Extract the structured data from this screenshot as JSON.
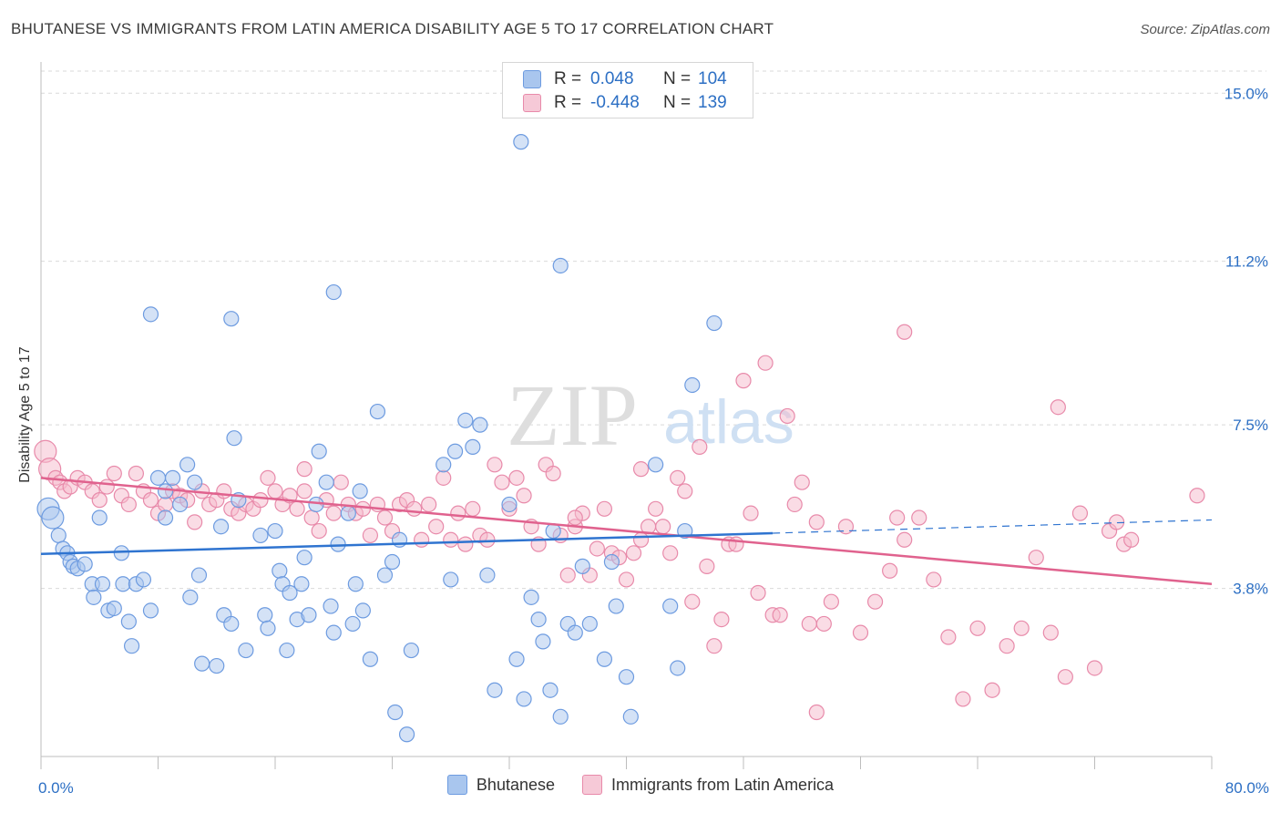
{
  "title": "BHUTANESE VS IMMIGRANTS FROM LATIN AMERICA DISABILITY AGE 5 TO 17 CORRELATION CHART",
  "source": "Source: ZipAtlas.com",
  "watermark": {
    "zip": "ZIP",
    "atlas": "atlas"
  },
  "legend_stats": [
    {
      "r_label": "R =",
      "r_value": "0.048",
      "n_label": "N =",
      "n_value": "104"
    },
    {
      "r_label": "R =",
      "r_value": "-0.448",
      "n_label": "N =",
      "n_value": "139"
    }
  ],
  "colors": {
    "blue_fill": "#a9c6ee",
    "blue_stroke": "#6d9be0",
    "blue_line": "#2f74d0",
    "pink_fill": "#f6b9cc",
    "pink_stroke": "#e88aaa",
    "pink_line": "#e0628e",
    "tick_label": "#2c6fc4",
    "grid": "#d9d9d9"
  },
  "chart_data": {
    "type": "scatter",
    "title": "BHUTANESE VS IMMIGRANTS FROM LATIN AMERICA DISABILITY AGE 5 TO 17 CORRELATION CHART",
    "xlabel": "",
    "ylabel": "Disability Age 5 to 17",
    "xlim": [
      0,
      80
    ],
    "ylim": [
      0,
      15.5
    ],
    "x_tick_labels": [
      {
        "value": 0,
        "label": "0.0%"
      },
      {
        "value": 80,
        "label": "80.0%"
      }
    ],
    "y_ticks": [
      {
        "value": 3.8,
        "label": "3.8%"
      },
      {
        "value": 7.5,
        "label": "7.5%"
      },
      {
        "value": 11.2,
        "label": "11.2%"
      },
      {
        "value": 15.0,
        "label": "15.0%"
      }
    ],
    "grid": true,
    "legend_position": "bottom",
    "series": [
      {
        "name": "Bhutanese",
        "r": 0.048,
        "n": 104,
        "trend": {
          "x0": 0,
          "y0": 4.58,
          "x1": 50,
          "y1": 5.05,
          "dashed_to_x": 80,
          "dashed_to_y": 5.35
        },
        "points": [
          [
            0.5,
            5.6
          ],
          [
            0.8,
            5.4
          ],
          [
            1.2,
            5.0
          ],
          [
            1.5,
            4.7
          ],
          [
            1.8,
            4.6
          ],
          [
            2.0,
            4.4
          ],
          [
            2.2,
            4.3
          ],
          [
            2.5,
            4.25
          ],
          [
            3.0,
            4.35
          ],
          [
            3.5,
            3.9
          ],
          [
            4.0,
            5.4
          ],
          [
            3.6,
            3.6
          ],
          [
            4.2,
            3.9
          ],
          [
            4.6,
            3.3
          ],
          [
            5.0,
            3.35
          ],
          [
            5.5,
            4.6
          ],
          [
            5.6,
            3.9
          ],
          [
            6.0,
            3.05
          ],
          [
            6.5,
            3.9
          ],
          [
            6.2,
            2.5
          ],
          [
            7.0,
            4.0
          ],
          [
            7.5,
            3.3
          ],
          [
            8.0,
            6.3
          ],
          [
            8.5,
            6.0
          ],
          [
            9.0,
            6.3
          ],
          [
            8.5,
            5.4
          ],
          [
            9.5,
            5.7
          ],
          [
            10.0,
            6.6
          ],
          [
            10.5,
            6.2
          ],
          [
            10.8,
            4.1
          ],
          [
            11.0,
            2.1
          ],
          [
            12.0,
            2.05
          ],
          [
            12.3,
            5.2
          ],
          [
            12.5,
            3.2
          ],
          [
            13.0,
            3.0
          ],
          [
            13.2,
            7.2
          ],
          [
            13.5,
            5.8
          ],
          [
            14.0,
            2.4
          ],
          [
            15.0,
            5.0
          ],
          [
            15.3,
            3.2
          ],
          [
            15.5,
            2.9
          ],
          [
            16.0,
            5.1
          ],
          [
            16.3,
            4.2
          ],
          [
            16.5,
            3.9
          ],
          [
            16.8,
            2.4
          ],
          [
            17.0,
            3.7
          ],
          [
            17.5,
            3.1
          ],
          [
            17.8,
            3.9
          ],
          [
            18.0,
            4.5
          ],
          [
            18.3,
            3.2
          ],
          [
            18.8,
            5.7
          ],
          [
            19.0,
            6.9
          ],
          [
            19.5,
            6.2
          ],
          [
            19.8,
            3.4
          ],
          [
            20.0,
            2.8
          ],
          [
            20.3,
            4.8
          ],
          [
            21.0,
            5.5
          ],
          [
            21.3,
            3.0
          ],
          [
            21.5,
            3.9
          ],
          [
            22.0,
            3.3
          ],
          [
            22.5,
            2.2
          ],
          [
            23.0,
            7.8
          ],
          [
            23.5,
            4.1
          ],
          [
            24.0,
            4.4
          ],
          [
            24.2,
            1.0
          ],
          [
            24.5,
            4.9
          ],
          [
            25.0,
            0.5
          ],
          [
            25.3,
            2.4
          ],
          [
            27.5,
            6.6
          ],
          [
            28.0,
            4.0
          ],
          [
            28.3,
            6.9
          ],
          [
            29.0,
            7.6
          ],
          [
            29.5,
            7.0
          ],
          [
            30.0,
            7.5
          ],
          [
            30.5,
            4.1
          ],
          [
            32.0,
            5.7
          ],
          [
            32.5,
            2.2
          ],
          [
            33.0,
            1.3
          ],
          [
            33.5,
            3.6
          ],
          [
            34.0,
            3.1
          ],
          [
            34.3,
            2.6
          ],
          [
            34.8,
            1.5
          ],
          [
            35.0,
            5.1
          ],
          [
            35.5,
            0.9
          ],
          [
            36.0,
            3.0
          ],
          [
            36.5,
            2.8
          ],
          [
            37.0,
            4.3
          ],
          [
            37.5,
            3.0
          ],
          [
            38.5,
            2.2
          ],
          [
            39.0,
            4.4
          ],
          [
            39.3,
            3.4
          ],
          [
            40.0,
            1.8
          ],
          [
            40.3,
            0.9
          ],
          [
            42.0,
            6.6
          ],
          [
            43.0,
            3.4
          ],
          [
            43.5,
            2.0
          ],
          [
            44.0,
            5.1
          ],
          [
            44.5,
            8.4
          ],
          [
            10.2,
            3.6
          ],
          [
            21.8,
            6.0
          ],
          [
            31.0,
            1.5
          ],
          [
            32.8,
            13.9
          ],
          [
            35.5,
            11.1
          ],
          [
            7.5,
            10.0
          ],
          [
            13.0,
            9.9
          ],
          [
            46.0,
            9.8
          ],
          [
            20.0,
            10.5
          ]
        ]
      },
      {
        "name": "Immigrants from Latin America",
        "r": -0.448,
        "n": 139,
        "trend": {
          "x0": 0,
          "y0": 6.3,
          "x1": 80,
          "y1": 3.9
        },
        "points": [
          [
            0.3,
            6.9
          ],
          [
            0.6,
            6.5
          ],
          [
            1.0,
            6.3
          ],
          [
            1.3,
            6.2
          ],
          [
            1.6,
            6.0
          ],
          [
            2.0,
            6.1
          ],
          [
            2.5,
            6.3
          ],
          [
            3.0,
            6.2
          ],
          [
            3.5,
            6.0
          ],
          [
            4.0,
            5.8
          ],
          [
            4.5,
            6.1
          ],
          [
            5.0,
            6.4
          ],
          [
            5.5,
            5.9
          ],
          [
            6.0,
            5.7
          ],
          [
            6.5,
            6.4
          ],
          [
            7.0,
            6.0
          ],
          [
            7.5,
            5.8
          ],
          [
            8.0,
            5.5
          ],
          [
            8.5,
            5.7
          ],
          [
            9.0,
            6.0
          ],
          [
            9.5,
            5.9
          ],
          [
            10.0,
            5.8
          ],
          [
            10.5,
            5.3
          ],
          [
            11.0,
            6.0
          ],
          [
            11.5,
            5.7
          ],
          [
            12.0,
            5.8
          ],
          [
            12.5,
            6.0
          ],
          [
            13.0,
            5.6
          ],
          [
            13.5,
            5.5
          ],
          [
            14.0,
            5.7
          ],
          [
            14.5,
            5.6
          ],
          [
            15.0,
            5.8
          ],
          [
            15.5,
            6.3
          ],
          [
            16.0,
            6.0
          ],
          [
            16.5,
            5.7
          ],
          [
            17.0,
            5.9
          ],
          [
            17.5,
            5.6
          ],
          [
            18.0,
            6.0
          ],
          [
            18.5,
            5.4
          ],
          [
            19.0,
            5.1
          ],
          [
            19.5,
            5.8
          ],
          [
            20.0,
            5.5
          ],
          [
            20.5,
            6.2
          ],
          [
            21.0,
            5.7
          ],
          [
            21.5,
            5.5
          ],
          [
            22.0,
            5.6
          ],
          [
            22.5,
            5.0
          ],
          [
            23.0,
            5.7
          ],
          [
            23.5,
            5.4
          ],
          [
            24.0,
            5.1
          ],
          [
            24.5,
            5.7
          ],
          [
            25.0,
            5.8
          ],
          [
            25.5,
            5.6
          ],
          [
            26.0,
            4.9
          ],
          [
            26.5,
            5.7
          ],
          [
            27.0,
            5.2
          ],
          [
            27.5,
            6.3
          ],
          [
            28.0,
            4.9
          ],
          [
            28.5,
            5.5
          ],
          [
            29.0,
            4.8
          ],
          [
            29.5,
            5.6
          ],
          [
            30.0,
            5.0
          ],
          [
            30.5,
            4.9
          ],
          [
            31.0,
            6.6
          ],
          [
            31.5,
            6.2
          ],
          [
            32.0,
            5.6
          ],
          [
            32.5,
            6.3
          ],
          [
            33.0,
            5.9
          ],
          [
            33.5,
            5.2
          ],
          [
            34.0,
            4.8
          ],
          [
            34.5,
            6.6
          ],
          [
            35.0,
            6.4
          ],
          [
            35.5,
            5.0
          ],
          [
            36.0,
            4.1
          ],
          [
            36.5,
            5.2
          ],
          [
            37.0,
            5.5
          ],
          [
            37.5,
            4.1
          ],
          [
            38.0,
            4.7
          ],
          [
            38.5,
            5.6
          ],
          [
            39.0,
            4.6
          ],
          [
            39.5,
            4.5
          ],
          [
            40.0,
            4.0
          ],
          [
            40.5,
            4.6
          ],
          [
            41.0,
            6.5
          ],
          [
            41.5,
            5.2
          ],
          [
            42.0,
            5.6
          ],
          [
            42.5,
            5.2
          ],
          [
            43.0,
            4.6
          ],
          [
            43.5,
            6.3
          ],
          [
            44.0,
            6.0
          ],
          [
            44.5,
            3.5
          ],
          [
            45.0,
            7.0
          ],
          [
            45.5,
            4.3
          ],
          [
            46.0,
            2.5
          ],
          [
            46.5,
            3.1
          ],
          [
            47.0,
            4.8
          ],
          [
            47.5,
            4.8
          ],
          [
            48.0,
            8.5
          ],
          [
            48.5,
            5.5
          ],
          [
            49.0,
            3.7
          ],
          [
            49.5,
            8.9
          ],
          [
            50.0,
            3.2
          ],
          [
            50.5,
            3.2
          ],
          [
            51.0,
            7.7
          ],
          [
            51.5,
            5.7
          ],
          [
            52.0,
            6.2
          ],
          [
            52.5,
            3.0
          ],
          [
            53.0,
            5.3
          ],
          [
            53.5,
            3.0
          ],
          [
            54.0,
            3.5
          ],
          [
            55.0,
            5.2
          ],
          [
            56.0,
            2.8
          ],
          [
            57.0,
            3.5
          ],
          [
            58.0,
            4.2
          ],
          [
            58.5,
            5.4
          ],
          [
            59.0,
            4.9
          ],
          [
            60.0,
            5.4
          ],
          [
            61.0,
            4.0
          ],
          [
            62.0,
            2.7
          ],
          [
            63.0,
            1.3
          ],
          [
            64.0,
            2.9
          ],
          [
            65.0,
            1.5
          ],
          [
            66.0,
            2.5
          ],
          [
            67.0,
            2.9
          ],
          [
            68.0,
            4.5
          ],
          [
            69.0,
            2.8
          ],
          [
            70.0,
            1.8
          ],
          [
            71.0,
            5.5
          ],
          [
            72.0,
            2.0
          ],
          [
            73.0,
            5.1
          ],
          [
            73.5,
            5.3
          ],
          [
            74.0,
            4.8
          ],
          [
            74.5,
            4.9
          ],
          [
            79.0,
            5.9
          ],
          [
            59.0,
            9.6
          ],
          [
            69.5,
            7.9
          ],
          [
            53.0,
            1.0
          ],
          [
            18.0,
            6.5
          ],
          [
            36.5,
            5.4
          ],
          [
            41.0,
            4.9
          ]
        ]
      }
    ]
  }
}
